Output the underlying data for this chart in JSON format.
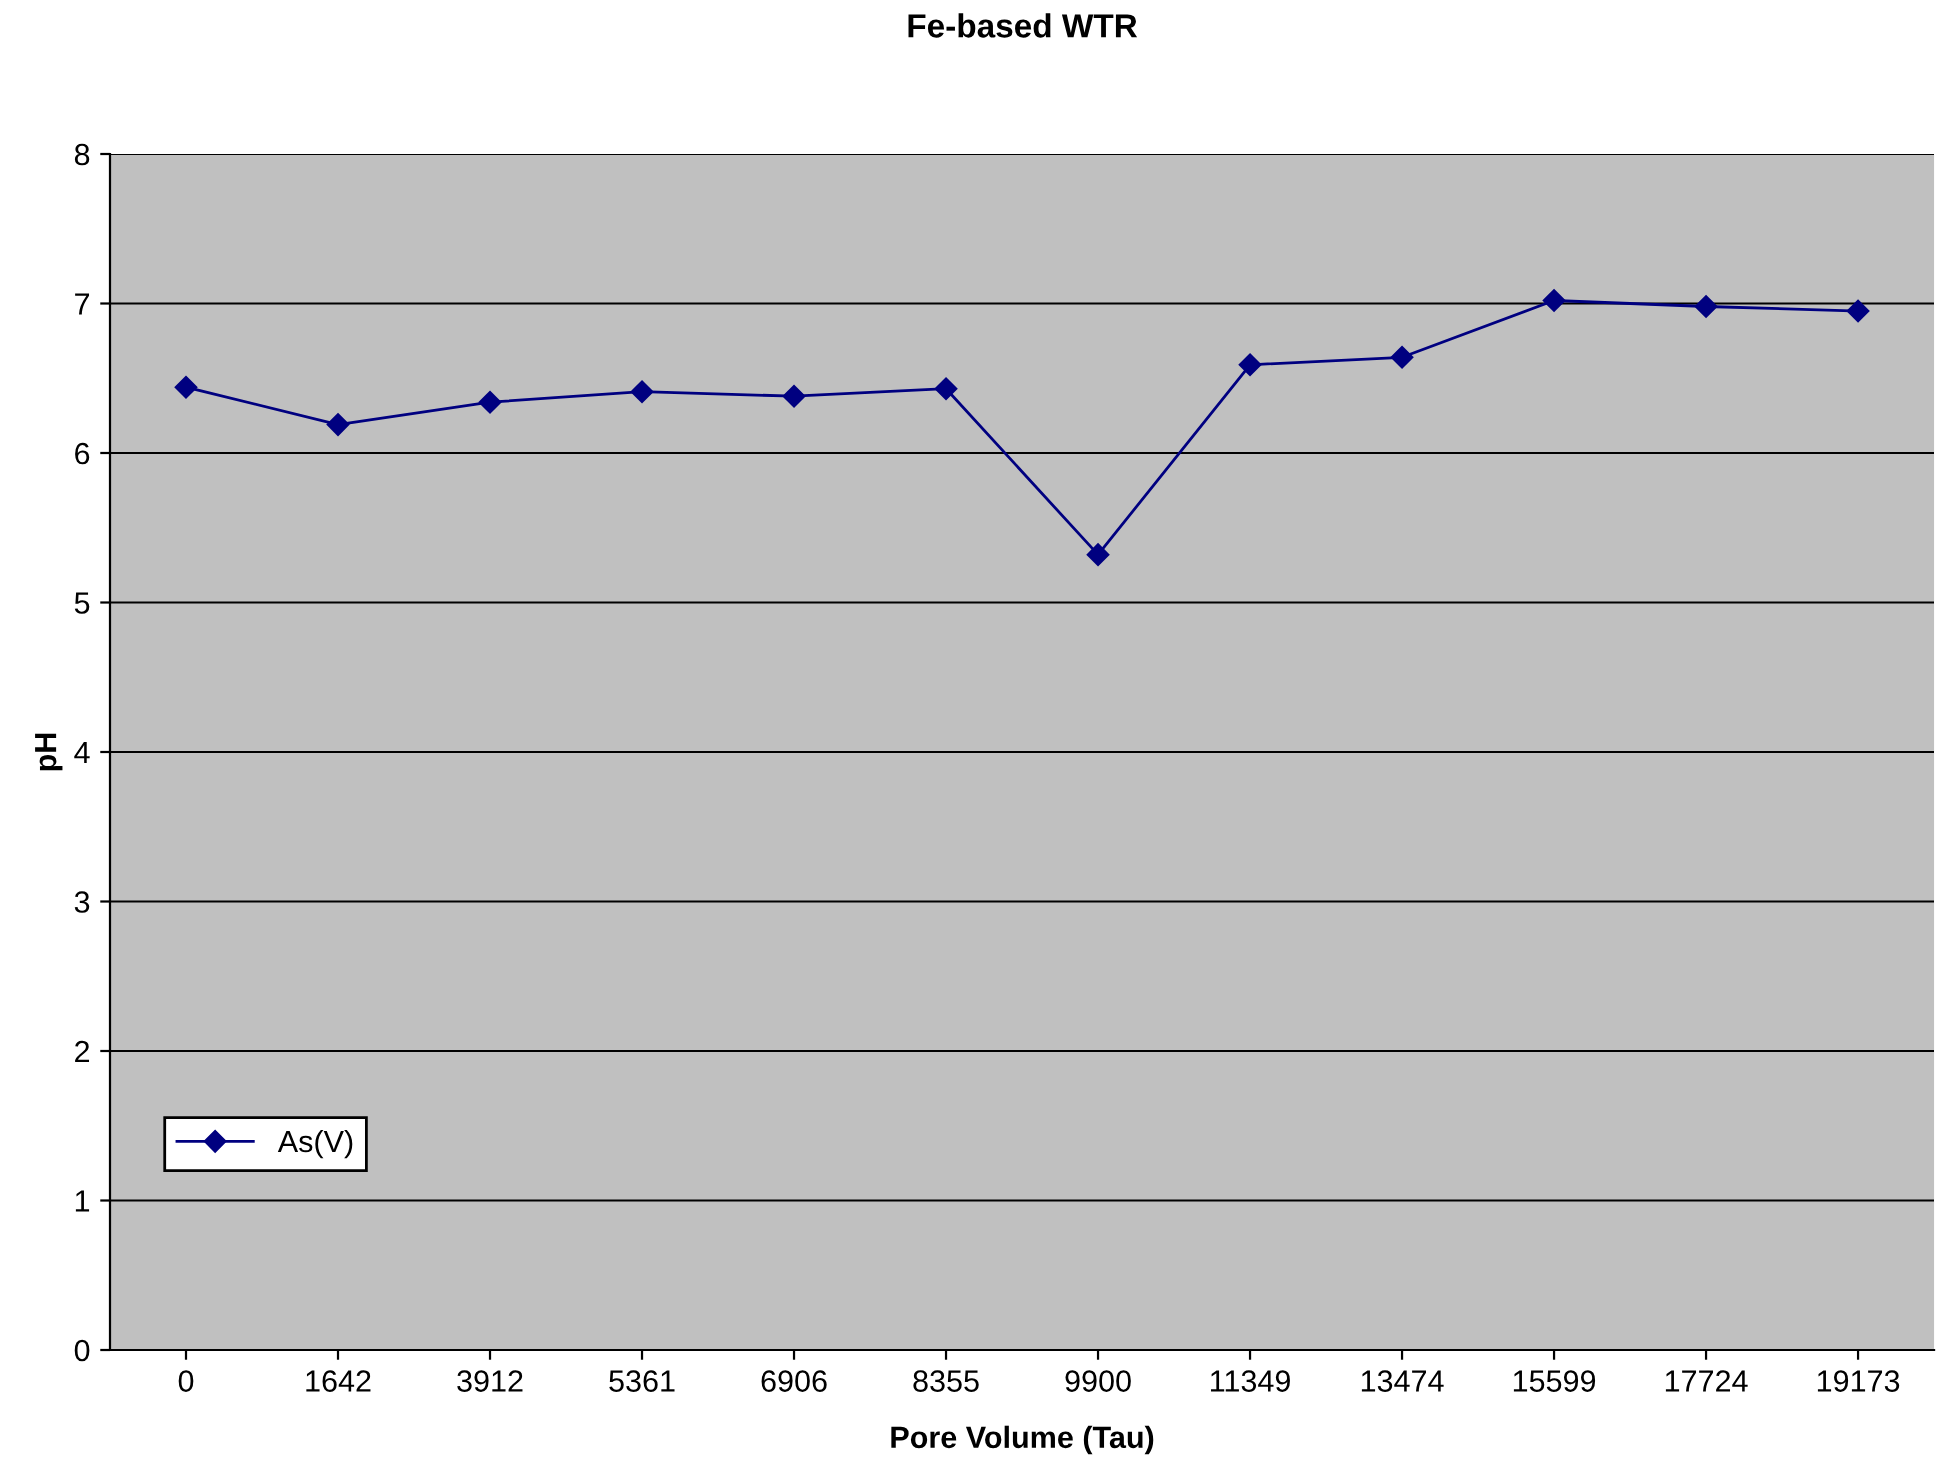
{
  "chart_data": {
    "type": "line",
    "title": "Fe-based WTR",
    "xlabel": "Pore Volume (Tau)",
    "ylabel": "pH",
    "categories": [
      "0",
      "1642",
      "3912",
      "5361",
      "6906",
      "8355",
      "9900",
      "11349",
      "13474",
      "15599",
      "17724",
      "19173"
    ],
    "series": [
      {
        "name": "As(V)",
        "color": "#000080",
        "values": [
          6.44,
          6.19,
          6.34,
          6.41,
          6.38,
          6.43,
          5.32,
          6.59,
          6.64,
          7.02,
          6.98,
          6.95
        ]
      }
    ],
    "ylim": [
      0,
      8
    ],
    "yticks": [
      0,
      1,
      2,
      3,
      4,
      5,
      6,
      7,
      8
    ],
    "grid": "y",
    "legend": "bottom left",
    "marker": "diamond",
    "line_style": "solid"
  }
}
